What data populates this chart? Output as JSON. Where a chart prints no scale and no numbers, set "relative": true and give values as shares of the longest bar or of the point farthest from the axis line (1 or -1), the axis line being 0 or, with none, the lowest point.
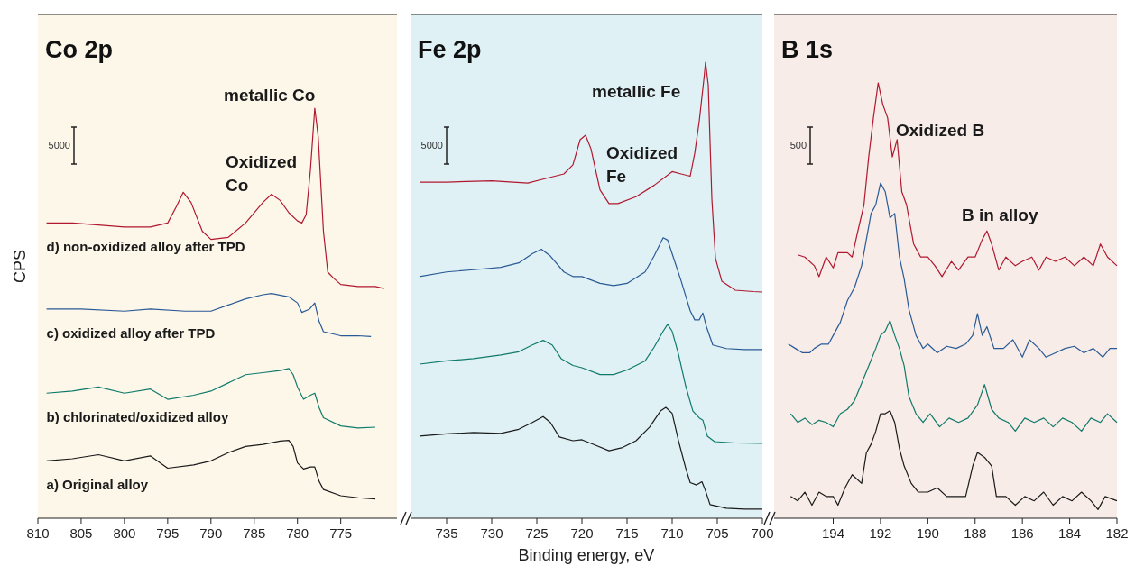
{
  "chart_data": [
    {
      "type": "line",
      "title": "Co 2p",
      "ylabel": "CPS",
      "relative": true,
      "xlim": [
        810,
        768.5
      ],
      "xticks": [
        810,
        805,
        800,
        795,
        790,
        785,
        780,
        775
      ],
      "annotations": [
        "5000",
        "metallic Co",
        "Oxidized\nCo"
      ],
      "series": [
        {
          "name": "d) non-oxidized alloy after TPD",
          "color": "#b0182f",
          "x": [
            809,
            806,
            803,
            800,
            797,
            795,
            794,
            793.2,
            792.3,
            791,
            790,
            788,
            786,
            784,
            783,
            782,
            781,
            780,
            779.5,
            779,
            778.5,
            778,
            777.6,
            777,
            776.5,
            775.8,
            775,
            773,
            771,
            770
          ],
          "values": [
            0.72,
            0.72,
            0.715,
            0.71,
            0.71,
            0.72,
            0.76,
            0.795,
            0.77,
            0.7,
            0.68,
            0.685,
            0.72,
            0.77,
            0.79,
            0.775,
            0.745,
            0.725,
            0.72,
            0.74,
            0.85,
            1,
            0.93,
            0.7,
            0.6,
            0.585,
            0.57,
            0.565,
            0.565,
            0.56
          ]
        },
        {
          "name": "c) oxidized alloy after TPD",
          "color": "#2a5a96",
          "x": [
            809,
            805,
            800,
            797,
            793,
            790,
            788,
            786,
            784,
            783,
            781,
            780,
            779.5,
            778.6,
            778,
            777.5,
            777,
            775,
            773,
            771.5
          ],
          "values": [
            0.51,
            0.51,
            0.505,
            0.51,
            0.505,
            0.505,
            0.52,
            0.535,
            0.545,
            0.548,
            0.54,
            0.525,
            0.502,
            0.51,
            0.525,
            0.48,
            0.455,
            0.445,
            0.445,
            0.443
          ]
        },
        {
          "name": "b) chlorinated/oxidized alloy",
          "color": "#0f7a6a",
          "x": [
            809,
            806,
            803,
            800,
            797,
            795,
            792,
            790,
            788,
            786,
            784,
            782,
            781,
            780.5,
            780,
            779.3,
            778.5,
            778,
            777.5,
            777,
            775,
            773,
            771
          ],
          "values": [
            0.305,
            0.31,
            0.32,
            0.305,
            0.315,
            0.29,
            0.3,
            0.31,
            0.33,
            0.35,
            0.355,
            0.36,
            0.365,
            0.35,
            0.32,
            0.29,
            0.3,
            0.305,
            0.27,
            0.245,
            0.225,
            0.22,
            0.222
          ]
        },
        {
          "name": "a) Original alloy",
          "color": "#1a1a1a",
          "x": [
            809,
            806,
            803,
            800,
            797,
            795,
            792,
            790,
            788,
            786,
            784,
            782,
            781,
            780.5,
            780,
            779.3,
            778.5,
            778,
            777.5,
            777,
            775,
            773,
            771
          ],
          "values": [
            0.14,
            0.145,
            0.155,
            0.14,
            0.152,
            0.122,
            0.13,
            0.14,
            0.16,
            0.175,
            0.18,
            0.188,
            0.19,
            0.175,
            0.135,
            0.12,
            0.125,
            0.125,
            0.09,
            0.07,
            0.055,
            0.05,
            0.047
          ]
        }
      ]
    },
    {
      "type": "line",
      "title": "Fe 2p",
      "xlabel": "Binding energy, eV",
      "relative": true,
      "xlim": [
        739,
        700
      ],
      "xticks": [
        735,
        730,
        725,
        720,
        715,
        710,
        705,
        700
      ],
      "annotations": [
        "5000",
        "metallic Fe",
        "Oxidized\nFe"
      ],
      "series": [
        {
          "color": "#b0182f",
          "x": [
            738,
            735,
            730,
            726,
            724,
            722,
            721,
            720.2,
            719.6,
            719,
            718,
            717,
            716,
            714,
            712,
            710,
            709,
            708,
            707.5,
            707,
            706.5,
            706.3,
            706,
            705.6,
            705.2,
            704.5,
            703,
            701,
            700
          ],
          "values": [
            0.737,
            0.737,
            0.74,
            0.735,
            0.745,
            0.755,
            0.775,
            0.83,
            0.84,
            0.81,
            0.72,
            0.69,
            0.69,
            0.705,
            0.73,
            0.76,
            0.755,
            0.75,
            0.8,
            0.87,
            0.96,
            1,
            0.95,
            0.7,
            0.57,
            0.52,
            0.5,
            0.497,
            0.496
          ]
        },
        {
          "color": "#2a5a96",
          "x": [
            738,
            735,
            732,
            729,
            727,
            725.5,
            724.5,
            723.5,
            722,
            721,
            720,
            718,
            716.5,
            715,
            713,
            712,
            711,
            710.5,
            710,
            709,
            708,
            707.5,
            707,
            706.6,
            706.2,
            705.5,
            704,
            702,
            700
          ],
          "values": [
            0.53,
            0.54,
            0.545,
            0.55,
            0.56,
            0.58,
            0.59,
            0.575,
            0.54,
            0.53,
            0.53,
            0.515,
            0.51,
            0.515,
            0.54,
            0.575,
            0.615,
            0.61,
            0.58,
            0.52,
            0.455,
            0.435,
            0.435,
            0.45,
            0.42,
            0.38,
            0.372,
            0.37,
            0.37
          ]
        },
        {
          "color": "#0f7a6a",
          "x": [
            738,
            735,
            732,
            729,
            727,
            725.5,
            724.3,
            723.3,
            722.3,
            721,
            720,
            718,
            716.5,
            715,
            713,
            712,
            711,
            710.5,
            710,
            709.3,
            708.5,
            707.7,
            707,
            706.6,
            706.1,
            705.3,
            703,
            700
          ],
          "values": [
            0.338,
            0.345,
            0.35,
            0.358,
            0.365,
            0.38,
            0.39,
            0.38,
            0.35,
            0.335,
            0.33,
            0.315,
            0.315,
            0.325,
            0.345,
            0.375,
            0.41,
            0.425,
            0.41,
            0.36,
            0.29,
            0.235,
            0.22,
            0.215,
            0.18,
            0.168,
            0.165,
            0.164
          ]
        },
        {
          "color": "#1a1a1a",
          "x": [
            738,
            735,
            732,
            729,
            727,
            725.5,
            724.3,
            723.5,
            722.5,
            721,
            720,
            718.5,
            717,
            715.5,
            714,
            712.5,
            711.3,
            710.7,
            710,
            709.3,
            708.5,
            708,
            707.3,
            706.7,
            706.3,
            705.8,
            704,
            702,
            700
          ],
          "values": [
            0.18,
            0.185,
            0.188,
            0.186,
            0.195,
            0.21,
            0.223,
            0.21,
            0.178,
            0.17,
            0.172,
            0.16,
            0.148,
            0.155,
            0.17,
            0.2,
            0.235,
            0.243,
            0.23,
            0.17,
            0.11,
            0.078,
            0.073,
            0.08,
            0.06,
            0.03,
            0.022,
            0.02,
            0.02
          ]
        }
      ]
    },
    {
      "type": "line",
      "title": "B 1s",
      "relative": true,
      "xlim": [
        196.5,
        182
      ],
      "xticks": [
        194,
        192,
        190,
        188,
        186,
        184,
        182
      ],
      "annotations": [
        "500",
        "Oxidized B",
        "B in alloy"
      ],
      "series": [
        {
          "color": "#b0182f",
          "x": [
            195.5,
            195.2,
            194.8,
            194.6,
            194.3,
            194,
            193.8,
            193.4,
            193.2,
            193,
            192.7,
            192.5,
            192.3,
            192.1,
            191.9,
            191.7,
            191.5,
            191.3,
            191.1,
            190.9,
            190.6,
            190.3,
            190,
            189.7,
            189.4,
            189,
            188.7,
            188.3,
            188,
            187.7,
            187.5,
            187.3,
            187,
            186.7,
            186.3,
            186,
            185.6,
            185.3,
            185,
            184.6,
            184.2,
            183.8,
            183.4,
            183,
            182.7,
            182.4,
            182
          ],
          "values": [
            0.605,
            0.6,
            0.58,
            0.555,
            0.6,
            0.575,
            0.61,
            0.61,
            0.6,
            0.65,
            0.72,
            0.83,
            0.92,
            1,
            0.95,
            0.92,
            0.83,
            0.87,
            0.75,
            0.72,
            0.63,
            0.6,
            0.6,
            0.58,
            0.555,
            0.59,
            0.57,
            0.6,
            0.6,
            0.64,
            0.66,
            0.63,
            0.57,
            0.6,
            0.58,
            0.59,
            0.6,
            0.57,
            0.6,
            0.59,
            0.6,
            0.58,
            0.6,
            0.58,
            0.63,
            0.6,
            0.58
          ]
        },
        {
          "color": "#2a5a96",
          "x": [
            195.9,
            195.6,
            195.3,
            195,
            194.8,
            194.5,
            194.2,
            194,
            193.7,
            193.4,
            193.1,
            192.8,
            192.6,
            192.4,
            192.2,
            192,
            191.8,
            191.6,
            191.4,
            191.2,
            191,
            190.8,
            190.5,
            190.2,
            190,
            189.6,
            189.2,
            188.8,
            188.4,
            188.1,
            187.9,
            187.7,
            187.5,
            187.2,
            186.8,
            186.4,
            186,
            185.7,
            185.3,
            185,
            184.6,
            184.2,
            183.8,
            183.4,
            183,
            182.6,
            182.3,
            182
          ],
          "values": [
            0.4,
            0.39,
            0.38,
            0.38,
            0.39,
            0.4,
            0.4,
            0.42,
            0.45,
            0.5,
            0.53,
            0.58,
            0.64,
            0.7,
            0.72,
            0.77,
            0.75,
            0.69,
            0.7,
            0.6,
            0.55,
            0.48,
            0.42,
            0.39,
            0.4,
            0.38,
            0.395,
            0.39,
            0.4,
            0.42,
            0.47,
            0.42,
            0.44,
            0.39,
            0.39,
            0.41,
            0.37,
            0.41,
            0.39,
            0.37,
            0.38,
            0.39,
            0.395,
            0.38,
            0.39,
            0.37,
            0.39,
            0.39
          ]
        },
        {
          "color": "#0f7a6a",
          "x": [
            195.8,
            195.5,
            195.2,
            194.9,
            194.6,
            194.3,
            194,
            193.7,
            193.4,
            193.1,
            192.8,
            192.5,
            192.2,
            192,
            191.8,
            191.6,
            191.4,
            191.2,
            191,
            190.8,
            190.5,
            190.2,
            189.9,
            189.5,
            189.1,
            188.7,
            188.3,
            187.9,
            187.6,
            187.3,
            187,
            186.6,
            186.3,
            185.9,
            185.5,
            185.1,
            184.7,
            184.3,
            183.9,
            183.5,
            183.1,
            182.7,
            182.4,
            182
          ],
          "values": [
            0.24,
            0.22,
            0.23,
            0.215,
            0.225,
            0.22,
            0.21,
            0.24,
            0.25,
            0.27,
            0.31,
            0.35,
            0.39,
            0.42,
            0.43,
            0.454,
            0.42,
            0.39,
            0.35,
            0.28,
            0.24,
            0.22,
            0.24,
            0.21,
            0.23,
            0.22,
            0.23,
            0.26,
            0.307,
            0.25,
            0.23,
            0.22,
            0.2,
            0.23,
            0.22,
            0.23,
            0.21,
            0.23,
            0.22,
            0.2,
            0.23,
            0.22,
            0.24,
            0.22
          ]
        },
        {
          "color": "#1a1a1a",
          "x": [
            195.8,
            195.5,
            195.2,
            194.9,
            194.6,
            194.3,
            194,
            193.8,
            193.5,
            193.2,
            193,
            192.8,
            192.6,
            192.4,
            192.2,
            192,
            191.8,
            191.6,
            191.4,
            191.2,
            191,
            190.7,
            190.4,
            190,
            189.6,
            189.2,
            188.8,
            188.4,
            188.1,
            187.9,
            187.6,
            187.3,
            187.1,
            186.7,
            186.3,
            185.9,
            185.5,
            185.1,
            184.7,
            184.3,
            183.9,
            183.5,
            183.1,
            182.8,
            182.5,
            182
          ],
          "values": [
            0.05,
            0.04,
            0.06,
            0.03,
            0.06,
            0.05,
            0.05,
            0.03,
            0.07,
            0.1,
            0.09,
            0.08,
            0.15,
            0.17,
            0.2,
            0.24,
            0.24,
            0.247,
            0.22,
            0.16,
            0.12,
            0.08,
            0.06,
            0.06,
            0.07,
            0.05,
            0.05,
            0.05,
            0.12,
            0.151,
            0.14,
            0.12,
            0.05,
            0.05,
            0.03,
            0.05,
            0.04,
            0.06,
            0.03,
            0.05,
            0.04,
            0.06,
            0.04,
            0.02,
            0.05,
            0.04
          ]
        }
      ]
    }
  ]
}
